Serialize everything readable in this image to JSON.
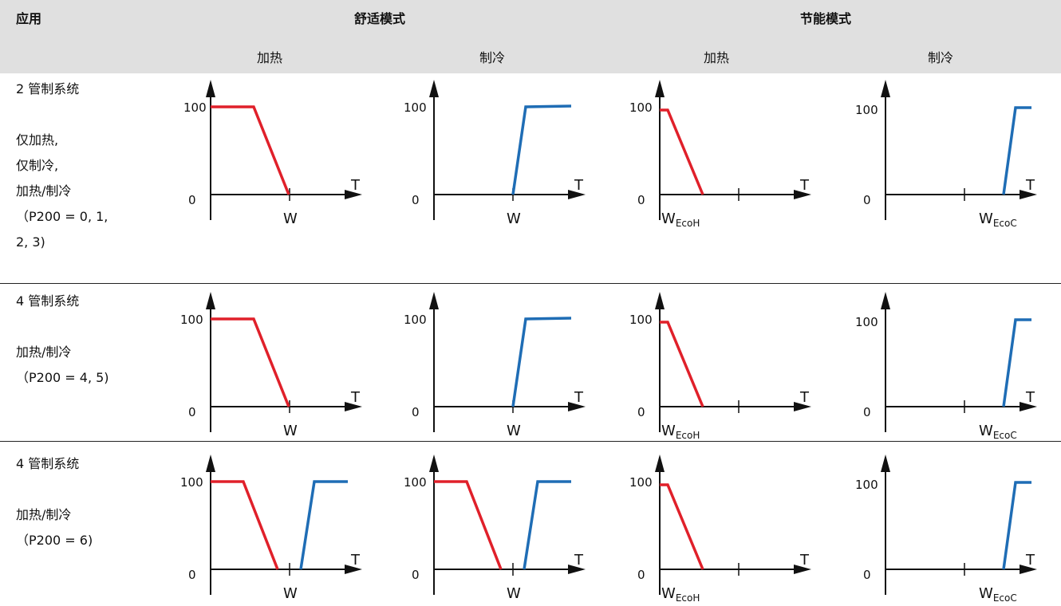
{
  "header": {
    "app_label": "应用",
    "comfort_label": "舒适模式",
    "eco_label": "节能模式",
    "sub": [
      "加热",
      "制冷",
      "加热",
      "制冷"
    ]
  },
  "axis": {
    "y100": "100",
    "y0": "0",
    "t": "T",
    "w": "W",
    "wh": "W",
    "wh_sub": "EcoH",
    "wc": "W",
    "wc_sub": "EcoC"
  },
  "colors": {
    "heat": "#e0202a",
    "cool": "#1f6db5"
  },
  "rows": [
    {
      "title": "2 管制系统",
      "lines": [
        "仅加热,",
        "仅制冷,",
        "加热/制冷",
        "（P200 = 0, 1,",
        "2, 3)"
      ]
    },
    {
      "title": "4 管制系统",
      "lines": [
        "加热/制冷",
        "（P200 = 4, 5)"
      ]
    },
    {
      "title": "4 管制系统",
      "lines": [
        "加热/制冷",
        "（P200 = 6)"
      ]
    }
  ]
}
